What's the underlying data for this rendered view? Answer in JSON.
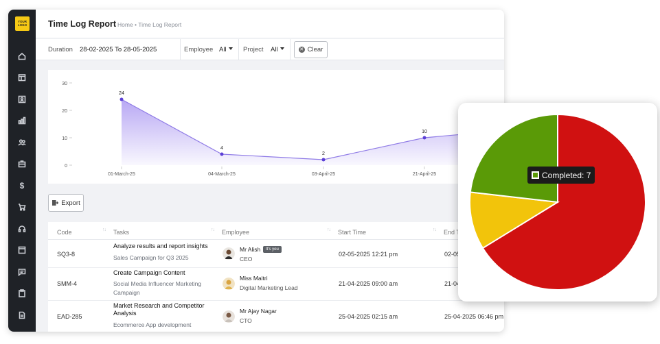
{
  "header": {
    "title": "Time Log Report",
    "breadcrumb": "Home • Time Log Report"
  },
  "logo_text": "YOUR LOGO",
  "sidebar": {
    "icons": [
      "home-icon",
      "calendar-grid-icon",
      "contacts-icon",
      "bar-chart-icon",
      "users-icon",
      "briefcase-icon",
      "dollar-icon",
      "cart-icon",
      "headset-icon",
      "window-icon",
      "chat-icon",
      "clipboard-icon",
      "document-icon"
    ]
  },
  "filters": {
    "duration_label": "Duration",
    "duration_value": "28-02-2025 To 28-05-2025",
    "employee_label": "Employee",
    "employee_value": "All",
    "project_label": "Project",
    "project_value": "All",
    "clear_label": "Clear"
  },
  "chart_data": [
    {
      "type": "area",
      "categories": [
        "01-March-25",
        "04-March-25",
        "03-April-25",
        "21-April-25",
        ""
      ],
      "values": [
        24,
        4,
        2,
        10,
        13
      ],
      "data_labels": [
        "24",
        "4",
        "2",
        "10",
        ""
      ],
      "yticks": [
        "30",
        "20",
        "10",
        "0"
      ],
      "ylim": [
        0,
        30
      ],
      "color": "#5b3fd6",
      "fill": "#b4a3f3"
    },
    {
      "type": "pie",
      "slices": [
        {
          "label": "",
          "value": 20,
          "color": "#d01111"
        },
        {
          "label": "",
          "value": 3.2,
          "color": "#f2c40b"
        },
        {
          "label": "Completed",
          "value": 7,
          "color": "#5a9a07"
        }
      ],
      "tooltip": "Completed: 7"
    }
  ],
  "export_label": "Export",
  "table": {
    "columns": [
      "Code",
      "Tasks",
      "Employee",
      "Start Time",
      "End T"
    ],
    "rows": [
      {
        "code": "SQ3-8",
        "task": "Analyze results and report insights",
        "project": "Sales Campaign for Q3 2025",
        "employee": "Mr Alish",
        "badge": "It's you",
        "role": "CEO",
        "start": "02-05-2025 12:21 pm",
        "end": "02-05"
      },
      {
        "code": "SMM-4",
        "task": "Create Campaign Content",
        "project": "Social Media Influencer Marketing Campaign",
        "employee": "Miss Maitri",
        "badge": "",
        "role": "Digital Marketing Lead",
        "start": "21-04-2025 09:00 am",
        "end": "21-04"
      },
      {
        "code": "EAD-285",
        "task": "Market Research and Competitor Analysis",
        "project": "Ecommerce App development",
        "employee": "Mr Ajay Nagar",
        "badge": "",
        "role": "CTO",
        "start": "25-04-2025 02:15 am",
        "end": "25-04-2025 06:46 pm"
      }
    ]
  }
}
